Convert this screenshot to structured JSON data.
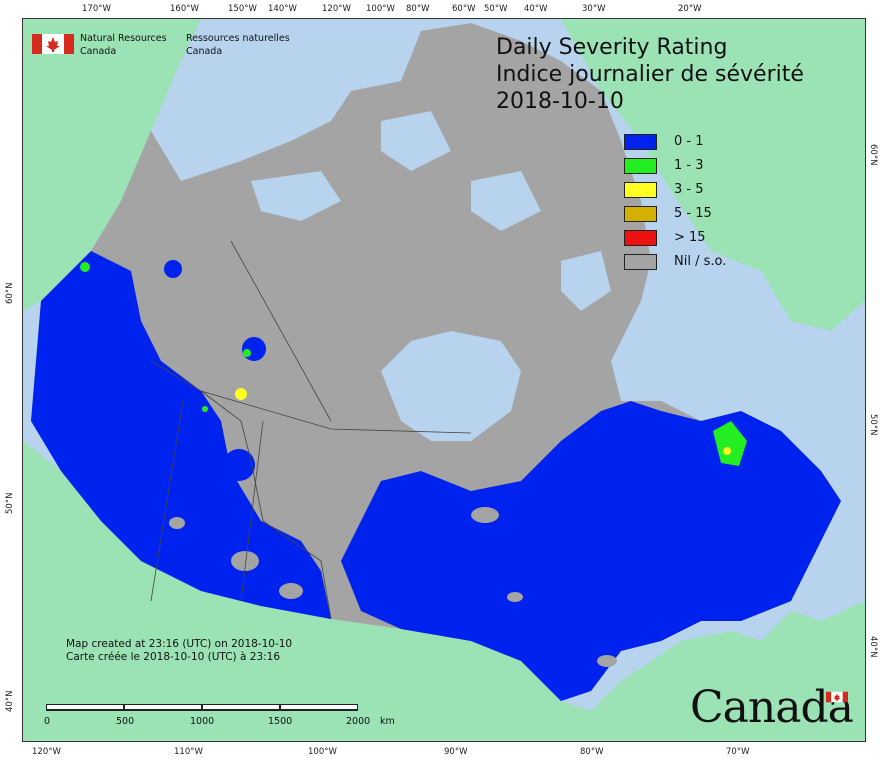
{
  "agency": {
    "name_en_1": "Natural Resources",
    "name_en_2": "Canada",
    "name_fr_1": "Ressources naturelles",
    "name_fr_2": "Canada"
  },
  "title": {
    "line1": "Daily Severity Rating",
    "line2": "Indice journalier de sévérité",
    "date": "2018-10-10"
  },
  "legend": [
    {
      "label": "0 - 1",
      "color": "#0022ee"
    },
    {
      "label": "1 - 3",
      "color": "#22ee22"
    },
    {
      "label": "3 - 5",
      "color": "#ffff22"
    },
    {
      "label": "5 - 15",
      "color": "#d4b000"
    },
    {
      "label": "> 15",
      "color": "#ee1111"
    },
    {
      "label": "Nil / s.o.",
      "color": "#a4a4a4"
    }
  ],
  "colors": {
    "ocean": "#b7d3ee",
    "foreign_land": "#9be3b5",
    "nil": "#a4a4a4",
    "low": "#0022ee"
  },
  "credits": {
    "line1": "Map created at 23:16 (UTC) on 2018-10-10",
    "line2": "Carte créée le 2018-10-10 (UTC) à 23:16"
  },
  "scale": {
    "labels": [
      "0",
      "500",
      "1000",
      "1500",
      "2000"
    ],
    "unit": "km"
  },
  "top_ticks": [
    "170°W",
    "160°W",
    "150°W",
    "140°W",
    "120°W",
    "100°W",
    "80°W",
    "60°W",
    "50°W",
    "40°W",
    "30°W",
    "20°W"
  ],
  "bottom_ticks": [
    "120°W",
    "110°W",
    "100°W",
    "90°W",
    "80°W",
    "70°W"
  ],
  "left_ticks": [
    "60°N",
    "50°N",
    "40°N"
  ],
  "right_ticks": [
    "60°N",
    "50°N",
    "40°N"
  ],
  "wordmark": "Canada"
}
